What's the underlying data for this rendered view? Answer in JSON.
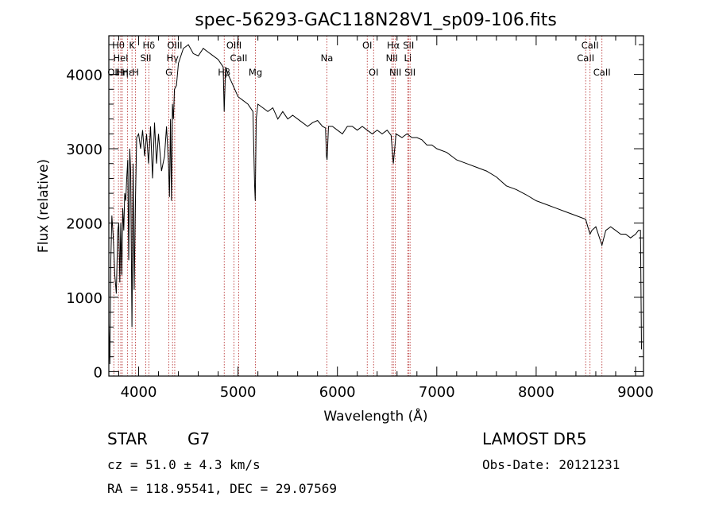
{
  "chart_data": {
    "type": "line",
    "title": "spec-56293-GAC118N28V1_sp09-106.fits",
    "xlabel": "Wavelength (Å)",
    "ylabel": "Flux (relative)",
    "xlim": [
      3700,
      9080
    ],
    "ylim": [
      -60,
      4520
    ],
    "xticks": [
      4000,
      5000,
      6000,
      7000,
      8000,
      9000
    ],
    "yticks": [
      0,
      1000,
      2000,
      3000,
      4000
    ],
    "grid": false,
    "line_color": "#000000",
    "marker_color": "#b22222",
    "series": [
      {
        "x": [
          3700,
          3710,
          3720,
          3730,
          3745,
          3760,
          3775,
          3790,
          3800,
          3810,
          3820,
          3830,
          3840,
          3850,
          3860,
          3870,
          3880,
          3890,
          3900,
          3910,
          3920,
          3933,
          3945,
          3955,
          3968,
          3980,
          4000,
          4020,
          4040,
          4060,
          4080,
          4100,
          4120,
          4140,
          4160,
          4180,
          4200,
          4230,
          4260,
          4280,
          4300,
          4310,
          4320,
          4330,
          4340,
          4350,
          4360,
          4380,
          4400,
          4450,
          4500,
          4550,
          4600,
          4650,
          4700,
          4750,
          4800,
          4850,
          4861,
          4875,
          4900,
          4950,
          5000,
          5050,
          5100,
          5150,
          5167,
          5173,
          5183,
          5200,
          5250,
          5300,
          5350,
          5400,
          5450,
          5500,
          5550,
          5600,
          5650,
          5700,
          5750,
          5800,
          5850,
          5880,
          5890,
          5896,
          5910,
          5950,
          6000,
          6050,
          6100,
          6150,
          6200,
          6250,
          6300,
          6350,
          6400,
          6450,
          6500,
          6540,
          6563,
          6590,
          6650,
          6700,
          6750,
          6800,
          6850,
          6900,
          6950,
          7000,
          7100,
          7200,
          7300,
          7400,
          7500,
          7600,
          7700,
          7800,
          7900,
          8000,
          8100,
          8200,
          8300,
          8400,
          8498,
          8520,
          8542,
          8560,
          8600,
          8662,
          8700,
          8750,
          8800,
          8850,
          8900,
          8950,
          9000,
          9030,
          9050,
          9060
        ],
        "y": [
          650,
          100,
          1500,
          2100,
          1800,
          1300,
          1050,
          1900,
          2000,
          1200,
          2000,
          1300,
          2200,
          1900,
          2400,
          2300,
          2600,
          2850,
          1500,
          3000,
          2700,
          600,
          2800,
          1100,
          2300,
          3150,
          3200,
          3000,
          3250,
          2900,
          3200,
          2800,
          3300,
          2600,
          3350,
          2800,
          3200,
          2700,
          2900,
          3300,
          2800,
          2350,
          3400,
          2300,
          3600,
          3400,
          3800,
          3850,
          4150,
          4350,
          4400,
          4280,
          4250,
          4350,
          4300,
          4250,
          4200,
          4100,
          3500,
          4100,
          4000,
          3850,
          3700,
          3650,
          3600,
          3500,
          2500,
          2300,
          3400,
          3600,
          3550,
          3500,
          3550,
          3400,
          3500,
          3400,
          3450,
          3400,
          3350,
          3300,
          3350,
          3380,
          3300,
          3280,
          2900,
          2850,
          3300,
          3300,
          3250,
          3200,
          3300,
          3300,
          3250,
          3300,
          3250,
          3200,
          3250,
          3200,
          3250,
          3180,
          2800,
          3200,
          3150,
          3200,
          3150,
          3150,
          3120,
          3050,
          3050,
          3000,
          2950,
          2850,
          2800,
          2750,
          2700,
          2620,
          2500,
          2450,
          2380,
          2300,
          2250,
          2200,
          2150,
          2100,
          2050,
          1950,
          1850,
          1900,
          1950,
          1700,
          1900,
          1950,
          1900,
          1850,
          1850,
          1800,
          1850,
          1900,
          1900,
          300
        ]
      }
    ],
    "lines": [
      {
        "x": 3750,
        "label": "OII",
        "row": 3
      },
      {
        "x": 3797,
        "label": "Hθ",
        "row": 1
      },
      {
        "x": 3820,
        "label": "HeI",
        "row": 2
      },
      {
        "x": 3835,
        "label": "Hη",
        "row": 3
      },
      {
        "x": 3889,
        "label": "Hε",
        "row": 3
      },
      {
        "x": 3933,
        "label": "K",
        "row": 1
      },
      {
        "x": 3968,
        "label": "H",
        "row": 3
      },
      {
        "x": 4072,
        "label": "SII",
        "row": 2
      },
      {
        "x": 4102,
        "label": "Hδ",
        "row": 1
      },
      {
        "x": 4304,
        "label": "G",
        "row": 3
      },
      {
        "x": 4341,
        "label": "Hγ",
        "row": 2
      },
      {
        "x": 4363,
        "label": "OIII",
        "row": 1
      },
      {
        "x": 4861,
        "label": "Hβ",
        "row": 3
      },
      {
        "x": 4959,
        "label": "OIII",
        "row": 1
      },
      {
        "x": 5007,
        "label": "CaII",
        "row": 2
      },
      {
        "x": 5175,
        "label": "Mg",
        "row": 3
      },
      {
        "x": 5894,
        "label": "Na",
        "row": 2
      },
      {
        "x": 6300,
        "label": "OI",
        "row": 1
      },
      {
        "x": 6364,
        "label": "OI",
        "row": 3
      },
      {
        "x": 6548,
        "label": "NII",
        "row": 2
      },
      {
        "x": 6563,
        "label": "Hα",
        "row": 1
      },
      {
        "x": 6583,
        "label": "NII",
        "row": 3
      },
      {
        "x": 6708,
        "label": "Li",
        "row": 2
      },
      {
        "x": 6716,
        "label": "SII",
        "row": 1
      },
      {
        "x": 6731,
        "label": "SII",
        "row": 3
      },
      {
        "x": 8498,
        "label": "CaII",
        "row": 2
      },
      {
        "x": 8542,
        "label": "CaII",
        "row": 1
      },
      {
        "x": 8662,
        "label": "CaII",
        "row": 3
      }
    ]
  },
  "footer": {
    "object_class": "STAR",
    "subclass": "G7",
    "cz": "cz = 51.0 ± 4.3 km/s",
    "coords": "RA = 118.95541, DEC =  29.07569",
    "survey": "LAMOST DR5",
    "obs_date": "Obs-Date: 20121231"
  }
}
